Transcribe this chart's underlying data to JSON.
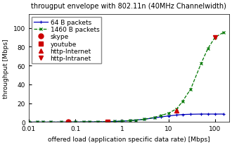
{
  "title": "througput envelope with 802.11n (40MHz Channelwidth)",
  "xlabel": "offered load (application specific data rate) [Mbps]",
  "ylabel": "throughput [Mbps]",
  "xlim": [
    0.01,
    200
  ],
  "ylim": [
    0,
    115
  ],
  "yticks": [
    0,
    20,
    40,
    60,
    80,
    100
  ],
  "line64_x": [
    0.01,
    0.015,
    0.02,
    0.03,
    0.05,
    0.07,
    0.1,
    0.15,
    0.2,
    0.3,
    0.5,
    0.7,
    1,
    1.5,
    2,
    3,
    5,
    7,
    10,
    15,
    20,
    30,
    50,
    70,
    100,
    150
  ],
  "line64_y": [
    0.01,
    0.015,
    0.02,
    0.03,
    0.05,
    0.07,
    0.1,
    0.15,
    0.2,
    0.3,
    0.5,
    0.7,
    1.0,
    1.5,
    2.0,
    3.0,
    4.5,
    5.5,
    6.5,
    7.5,
    8.0,
    8.3,
    8.5,
    8.5,
    8.5,
    8.5
  ],
  "line1460_x": [
    0.01,
    0.015,
    0.02,
    0.03,
    0.05,
    0.07,
    0.1,
    0.15,
    0.2,
    0.3,
    0.5,
    0.7,
    1,
    1.5,
    2,
    3,
    5,
    7,
    10,
    15,
    20,
    30,
    50,
    70,
    100,
    150
  ],
  "line1460_y": [
    0.01,
    0.015,
    0.02,
    0.03,
    0.05,
    0.07,
    0.1,
    0.15,
    0.2,
    0.3,
    0.5,
    0.7,
    1.0,
    1.5,
    2.0,
    3.0,
    5.0,
    7.0,
    9.5,
    14,
    22,
    35,
    62,
    78,
    90,
    95
  ],
  "skype_x": [
    0.07
  ],
  "skype_y": [
    0.07
  ],
  "youtube_x": [
    0.5
  ],
  "youtube_y": [
    0.5
  ],
  "http_internet_x": [
    15
  ],
  "http_internet_y": [
    12
  ],
  "http_intranet_x": [
    100
  ],
  "http_intranet_y": [
    90
  ],
  "line64_color": "#0000bb",
  "line1460_color": "#007700",
  "app_color": "#cc0000",
  "legend_fontsize": 6.5,
  "title_fontsize": 7,
  "axis_label_fontsize": 6.5,
  "tick_fontsize": 6.5
}
